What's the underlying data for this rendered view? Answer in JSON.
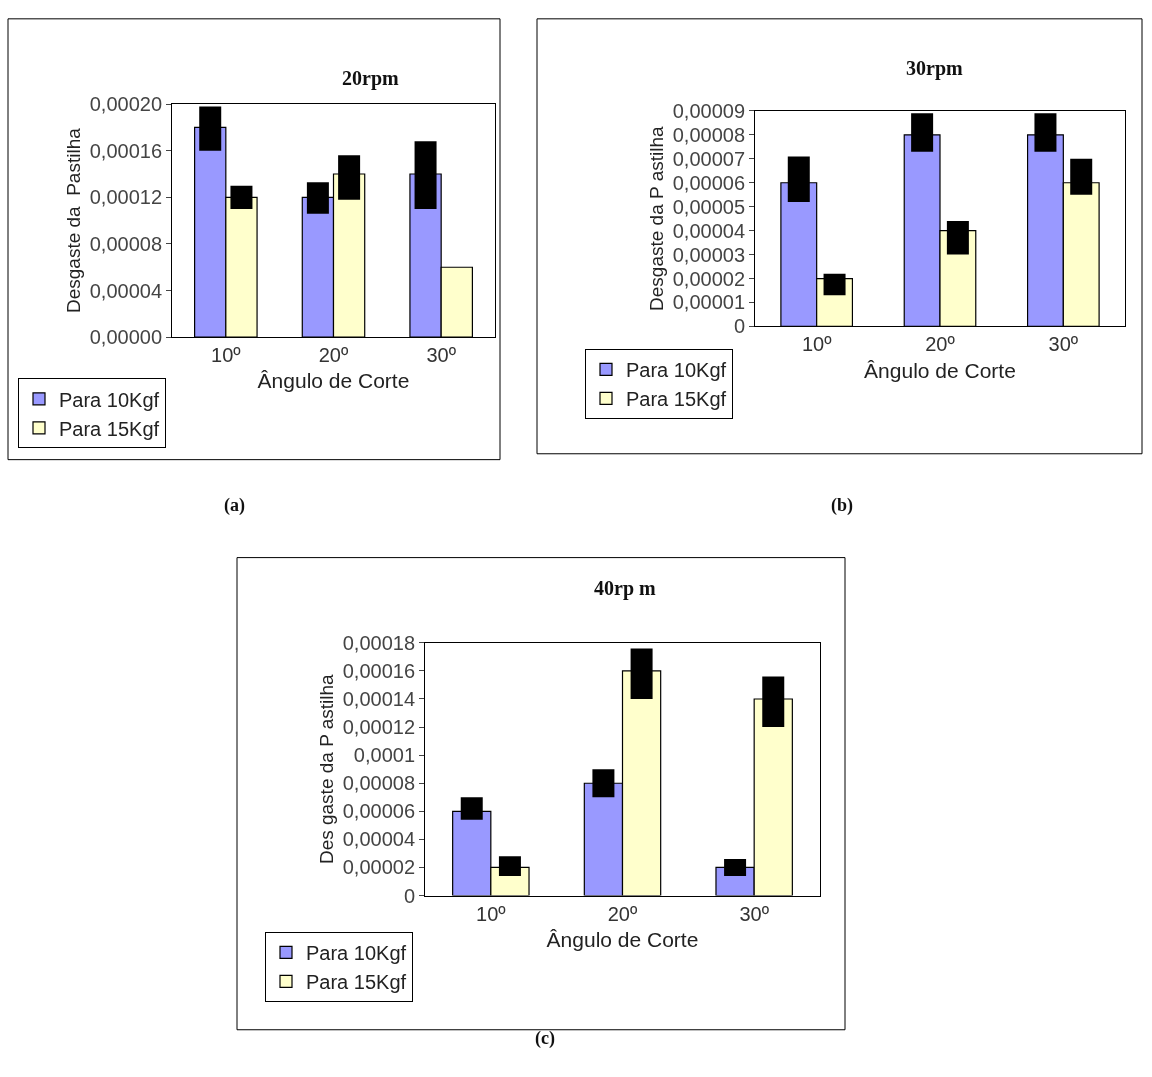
{
  "chart_data": [
    {
      "type": "bar",
      "title": "20rpm",
      "xlabel": "Ângulo de Corte",
      "ylabel": "Desgaste da  Pastilha",
      "categories": [
        "10º",
        "20º",
        "30º"
      ],
      "legend": "bottom left",
      "annotations": [
        "(a)"
      ],
      "ylim": [
        0,
        0.0002
      ],
      "yticks": [
        {
          "value": 0,
          "label": "0,00000"
        },
        {
          "value": 4e-05,
          "label": "0,00004"
        },
        {
          "value": 8e-05,
          "label": "0,00008"
        },
        {
          "value": 0.00012,
          "label": "0,00012"
        },
        {
          "value": 0.00016,
          "label": "0,00016"
        },
        {
          "value": 0.0002,
          "label": "0,00020"
        }
      ],
      "series": [
        {
          "name": "Para 10Kgf",
          "color": "#9999ff",
          "values": [
            0.00018,
            0.00012,
            0.00014
          ],
          "errors": [
            [
              0.00016,
              0.000198
            ],
            [
              0.000106,
              0.000133
            ],
            [
              0.00011,
              0.000168
            ]
          ]
        },
        {
          "name": "Para 15Kgf",
          "color": "#ffffcc",
          "values": [
            0.00012,
            0.00014,
            6e-05
          ],
          "errors": [
            [
              0.00011,
              0.00013
            ],
            [
              0.000118,
              0.000156
            ],
            null
          ]
        }
      ]
    },
    {
      "type": "bar",
      "title": "30rpm",
      "xlabel": "Ângulo de Corte",
      "ylabel": "Desgaste da P astilha",
      "categories": [
        "10º",
        "20º",
        "30º"
      ],
      "legend": "bottom left",
      "annotations": [
        "(b)"
      ],
      "ylim": [
        0,
        9e-05
      ],
      "yticks": [
        {
          "value": 0,
          "label": "0"
        },
        {
          "value": 1e-05,
          "label": "0,00001"
        },
        {
          "value": 2e-05,
          "label": "0,00002"
        },
        {
          "value": 3e-05,
          "label": "0,00003"
        },
        {
          "value": 4e-05,
          "label": "0,00004"
        },
        {
          "value": 5e-05,
          "label": "0,00005"
        },
        {
          "value": 6e-05,
          "label": "0,00006"
        },
        {
          "value": 7e-05,
          "label": "0,00007"
        },
        {
          "value": 8e-05,
          "label": "0,00008"
        },
        {
          "value": 9e-05,
          "label": "0,00009"
        }
      ],
      "series": [
        {
          "name": "Para 10Kgf",
          "color": "#9999ff",
          "values": [
            6e-05,
            8e-05,
            8e-05
          ],
          "errors": [
            [
              5.2e-05,
              7.1e-05
            ],
            [
              7.3e-05,
              8.9e-05
            ],
            [
              7.3e-05,
              8.9e-05
            ]
          ]
        },
        {
          "name": "Para 15Kgf",
          "color": "#ffffcc",
          "values": [
            2e-05,
            4e-05,
            6e-05
          ],
          "errors": [
            [
              1.3e-05,
              2.2e-05
            ],
            [
              3e-05,
              4.4e-05
            ],
            [
              5.5e-05,
              7e-05
            ]
          ]
        }
      ]
    },
    {
      "type": "bar",
      "title": "40rp m",
      "xlabel": "Ângulo de Corte",
      "ylabel": "Des gaste da P astilha",
      "categories": [
        "10º",
        "20º",
        "30º"
      ],
      "legend": "bottom left",
      "annotations": [
        "(c)"
      ],
      "ylim": [
        0,
        0.00018
      ],
      "yticks": [
        {
          "value": 0,
          "label": "0"
        },
        {
          "value": 2e-05,
          "label": "0,00002"
        },
        {
          "value": 4e-05,
          "label": "0,00004"
        },
        {
          "value": 6e-05,
          "label": "0,00006"
        },
        {
          "value": 8e-05,
          "label": "0,00008"
        },
        {
          "value": 0.0001,
          "label": "0,0001"
        },
        {
          "value": 0.00012,
          "label": "0,00012"
        },
        {
          "value": 0.00014,
          "label": "0,00014"
        },
        {
          "value": 0.00016,
          "label": "0,00016"
        },
        {
          "value": 0.00018,
          "label": "0,00018"
        }
      ],
      "series": [
        {
          "name": "Para 10Kgf",
          "color": "#9999ff",
          "values": [
            6e-05,
            8e-05,
            2e-05
          ],
          "errors": [
            [
              5.4e-05,
              7e-05
            ],
            [
              7e-05,
              9e-05
            ],
            [
              1.4e-05,
              2.6e-05
            ]
          ]
        },
        {
          "name": "Para 15Kgf",
          "color": "#ffffcc",
          "values": [
            2e-05,
            0.00016,
            0.00014
          ],
          "errors": [
            [
              1.4e-05,
              2.8e-05
            ],
            [
              0.00014,
              0.000176
            ],
            [
              0.00012,
              0.000156
            ]
          ]
        }
      ]
    }
  ]
}
